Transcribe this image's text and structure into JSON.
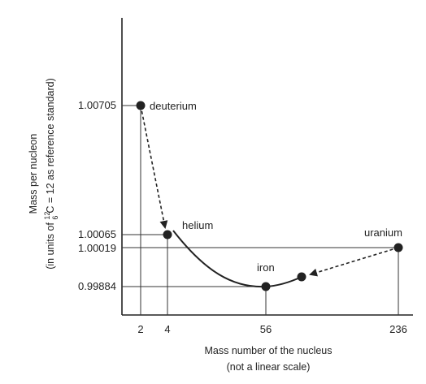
{
  "chart_data": {
    "type": "scatter",
    "x_axis": {
      "title_lines": [
        "Mass number of the nucleus",
        "(not a linear scale)"
      ],
      "ticks": [
        "2",
        "4",
        "56",
        "236"
      ],
      "linear": false
    },
    "y_axis": {
      "title_line1": "Mass per nucleon",
      "title_line2_prefix": "(in units of ",
      "title_line2_sup": "12",
      "title_line2_sub": "6",
      "title_line2_suffix": "C = 12 as reference standard)",
      "ticks": [
        "1.00705",
        "1.00065",
        "1.00019",
        "0.99884"
      ],
      "linear": false
    },
    "points": [
      {
        "label": "deuterium",
        "x": 2,
        "y": 1.00705
      },
      {
        "label": "helium",
        "x": 4,
        "y": 1.00065
      },
      {
        "label": "iron",
        "x": 56,
        "y": 0.99884
      },
      {
        "label": "",
        "x": 90,
        "y": 0.9994
      },
      {
        "label": "uranium",
        "x": 236,
        "y": 1.00019
      }
    ],
    "curve": "helium-to-iron-to-uranium binding curve",
    "arrows": [
      {
        "from": "deuterium",
        "to": "helium",
        "style": "dashed"
      },
      {
        "from": "uranium",
        "to": "fission fragment",
        "style": "dashed"
      }
    ],
    "grid": false
  }
}
